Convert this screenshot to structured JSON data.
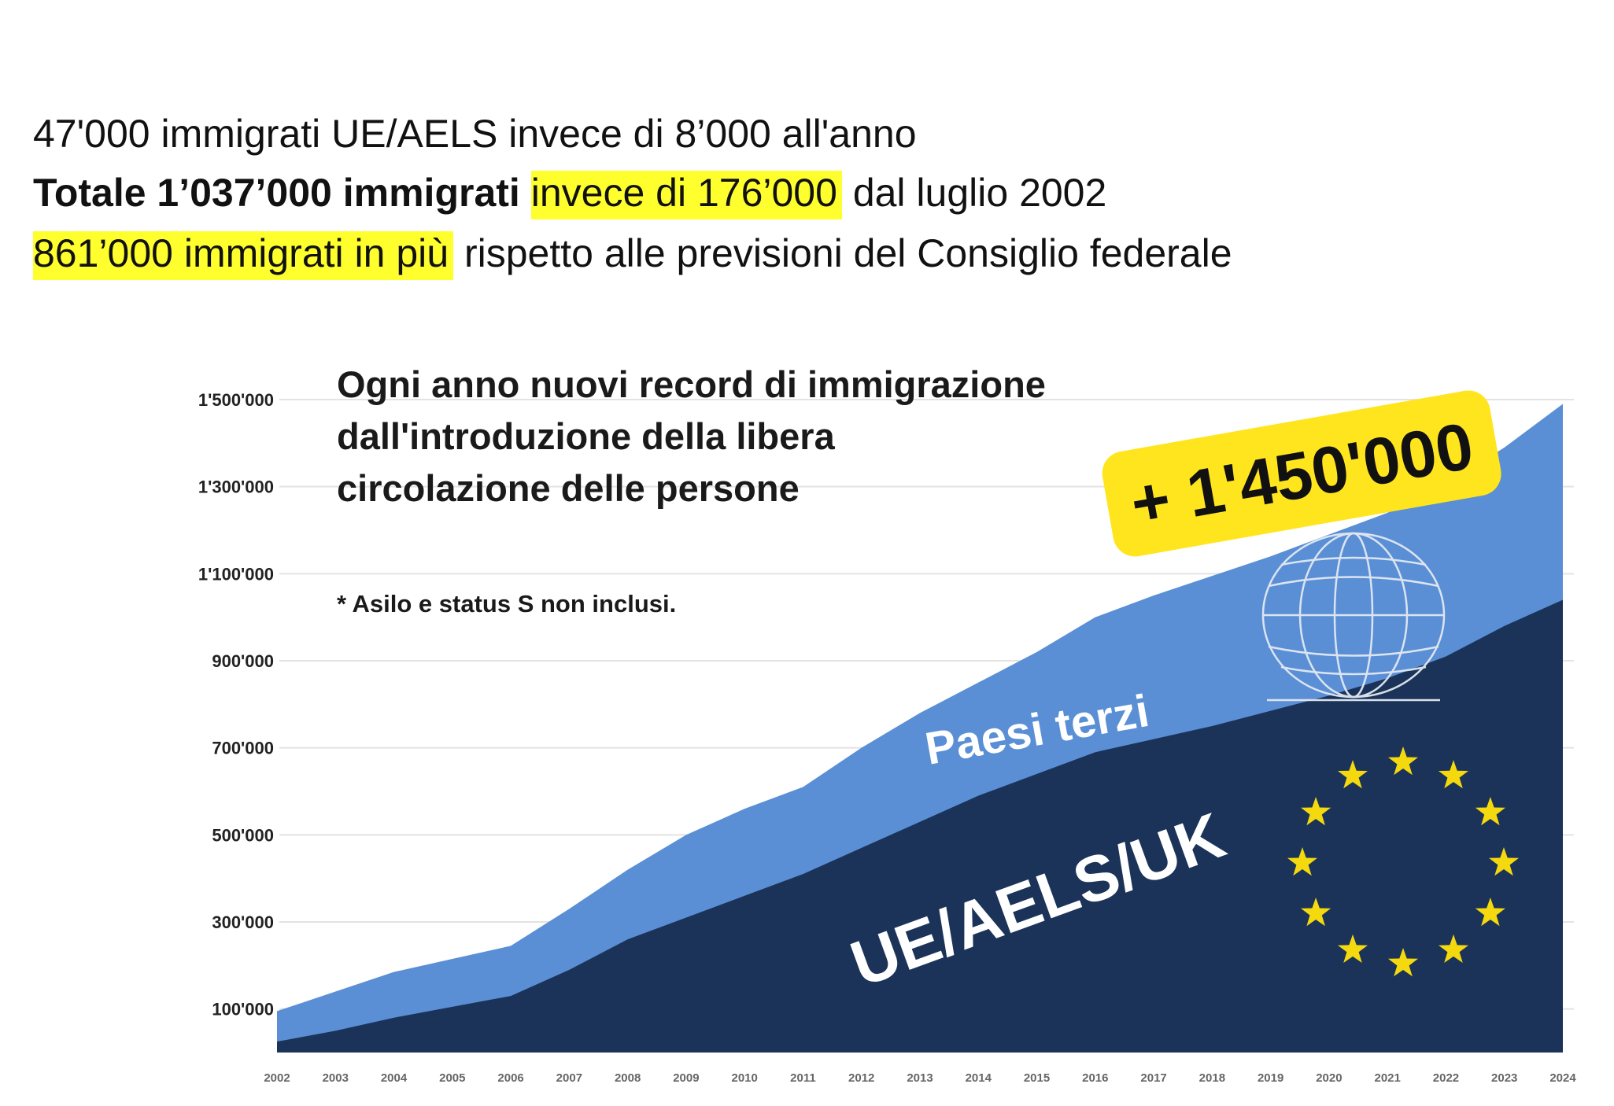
{
  "headlines": {
    "line1": "47'000 immigrati UE/AELS invece di 8’000 all'anno",
    "line2_bold": "Totale 1’037’000 immigrati",
    "line2_highlight": "invece di 176’000",
    "line2_rest": "dal luglio 2002",
    "line3_highlight": "861’000 immigrati in più",
    "line3_rest": "rispetto alle previsioni del Consiglio federale"
  },
  "colors": {
    "highlight": "#ffff2e",
    "terzi_area": "#5a8fd6",
    "ue_area": "#1b3358",
    "badge": "#ffe51e",
    "stars": "#f5d90f",
    "grid": "#e3e3e3"
  },
  "icons": [
    "globe-icon",
    "eu-stars-icon"
  ],
  "chart_data": {
    "type": "area",
    "stacked": true,
    "title_lines": [
      "Ogni anno nuovi record di immigrazione",
      "dall'introduzione della libera",
      "circolazione delle persone"
    ],
    "note": "* Asilo e status S non inclusi.",
    "badge": "+ 1'450'000",
    "grid": true,
    "ylim": [
      0,
      1500000
    ],
    "yticks": [
      100000,
      300000,
      500000,
      700000,
      900000,
      1100000,
      1300000,
      1500000
    ],
    "ytick_labels": [
      "100'000",
      "300'000",
      "500'000",
      "700'000",
      "900'000",
      "1'100'000",
      "1'300'000",
      "1'500'000"
    ],
    "x": [
      2002,
      2003,
      2004,
      2005,
      2006,
      2007,
      2008,
      2009,
      2010,
      2011,
      2012,
      2013,
      2014,
      2015,
      2016,
      2017,
      2018,
      2019,
      2020,
      2021,
      2022,
      2023,
      2024
    ],
    "x_labels": [
      "2002",
      "2003",
      "2004",
      "2005",
      "2006",
      "2007",
      "2008",
      "2009",
      "2010",
      "2011",
      "2012",
      "2013",
      "2014",
      "2015",
      "2016",
      "2017",
      "2018",
      "2019",
      "2020",
      "2021",
      "2022",
      "2023",
      "2024"
    ],
    "series": [
      {
        "name": "UE/AELS/UK",
        "values": [
          25000,
          50000,
          80000,
          105000,
          130000,
          190000,
          260000,
          310000,
          360000,
          410000,
          470000,
          530000,
          590000,
          640000,
          690000,
          720000,
          750000,
          785000,
          820000,
          860000,
          910000,
          980000,
          1040000
        ]
      },
      {
        "name": "Paesi terzi",
        "values": [
          70000,
          90000,
          105000,
          110000,
          115000,
          140000,
          160000,
          190000,
          200000,
          200000,
          230000,
          250000,
          260000,
          280000,
          310000,
          330000,
          345000,
          355000,
          370000,
          380000,
          395000,
          410000,
          450000
        ]
      }
    ]
  }
}
